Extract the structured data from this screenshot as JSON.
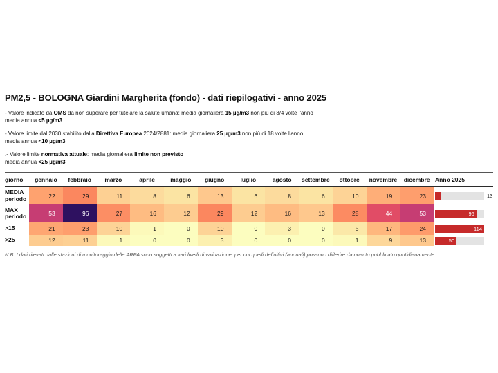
{
  "title": "PM2,5 - BOLOGNA Giardini Margherita (fondo) - dati riepilogativi - anno 2025",
  "notes": [
    {
      "lines": [
        [
          {
            "t": "- Valore indicato da "
          },
          {
            "t": "OMS",
            "b": 1
          },
          {
            "t": " da non superare per tutelare la salute umana: media giornaliera "
          },
          {
            "t": "15 µg/m3",
            "b": 1
          },
          {
            "t": " non più di 3/4 volte l'anno"
          }
        ],
        [
          {
            "t": "media annua "
          },
          {
            "t": "<5 µg/m3",
            "b": 1
          }
        ]
      ]
    },
    {
      "lines": [
        [
          {
            "t": "- Valore limite dal 2030 stabilito dalla "
          },
          {
            "t": "Direttiva Europea",
            "b": 1
          },
          {
            "t": " 2024/2881: media giornaliera "
          },
          {
            "t": "25 µg/m3",
            "b": 1
          },
          {
            "t": " non più di 18 volte l'anno"
          }
        ],
        [
          {
            "t": "media annua "
          },
          {
            "t": "<10 µg/m3",
            "b": 1
          }
        ]
      ]
    },
    {
      "lines": [
        [
          {
            "t": ".- Valore limite "
          },
          {
            "t": "normativa attuale",
            "b": 1
          },
          {
            "t": ": media giornaliera "
          },
          {
            "t": "limite non previsto",
            "b": 1
          }
        ],
        [
          {
            "t": "media annua "
          },
          {
            "t": "<25 µg/m3",
            "b": 1
          }
        ]
      ]
    }
  ],
  "table": {
    "corner_header": "giorno",
    "month_headers": [
      "gennaio",
      "febbraio",
      "marzo",
      "aprile",
      "maggio",
      "giugno",
      "luglio",
      "agosto",
      "settembre",
      "ottobre",
      "novembre",
      "dicembre"
    ],
    "year_header": "Anno 2025",
    "bar_max": 114,
    "bar_color": "#c62a2a",
    "bar_track_color": "#e3e3e3",
    "rows": [
      {
        "label_lines": [
          "MEDIA",
          "periodo"
        ],
        "cells": [
          {
            "v": 22,
            "bg": "#fea26f"
          },
          {
            "v": 29,
            "bg": "#fb875f"
          },
          {
            "v": 11,
            "bg": "#fdd093"
          },
          {
            "v": 8,
            "bg": "#fcdb9d"
          },
          {
            "v": 6,
            "bg": "#fbe4a3"
          },
          {
            "v": 13,
            "bg": "#fec88d"
          },
          {
            "v": 6,
            "bg": "#fbe4a3"
          },
          {
            "v": 8,
            "bg": "#fcdb9d"
          },
          {
            "v": 6,
            "bg": "#fbe4a3"
          },
          {
            "v": 10,
            "bg": "#fdd396"
          },
          {
            "v": 19,
            "bg": "#feae78"
          },
          {
            "v": 23,
            "bg": "#fe9e6d"
          }
        ],
        "year": 13
      },
      {
        "label_lines": [
          "MAX",
          "periodo"
        ],
        "cells": [
          {
            "v": 53,
            "bg": "#c63d73",
            "fg": "#ffffff"
          },
          {
            "v": 96,
            "bg": "#2e1160",
            "fg": "#ffffff"
          },
          {
            "v": 27,
            "bg": "#fc8e64"
          },
          {
            "v": 16,
            "bg": "#febc82"
          },
          {
            "v": 12,
            "bg": "#fdcc90"
          },
          {
            "v": 29,
            "bg": "#fb875f"
          },
          {
            "v": 12,
            "bg": "#fdcc90"
          },
          {
            "v": 16,
            "bg": "#febc82"
          },
          {
            "v": 13,
            "bg": "#fec88d"
          },
          {
            "v": 28,
            "bg": "#fc8b62"
          },
          {
            "v": 44,
            "bg": "#e14c66",
            "fg": "#ffffff"
          },
          {
            "v": 53,
            "bg": "#c63d73",
            "fg": "#ffffff"
          }
        ],
        "year": 96
      },
      {
        "label_lines": [
          ">15"
        ],
        "cells": [
          {
            "v": 21,
            "bg": "#fea672"
          },
          {
            "v": 23,
            "bg": "#fe9e6d"
          },
          {
            "v": 10,
            "bg": "#fdd396"
          },
          {
            "v": 1,
            "bg": "#fcf9ba"
          },
          {
            "v": 0,
            "bg": "#fcfdbf"
          },
          {
            "v": 10,
            "bg": "#fdd396"
          },
          {
            "v": 0,
            "bg": "#fcfdbf"
          },
          {
            "v": 3,
            "bg": "#fcf0b0"
          },
          {
            "v": 0,
            "bg": "#fcfdbf"
          },
          {
            "v": 5,
            "bg": "#fbe8a8"
          },
          {
            "v": 17,
            "bg": "#feb77e"
          },
          {
            "v": 24,
            "bg": "#fe9b6b"
          }
        ],
        "year": 114
      },
      {
        "label_lines": [
          ">25"
        ],
        "cells": [
          {
            "v": 12,
            "bg": "#fdcc90"
          },
          {
            "v": 11,
            "bg": "#fdd093"
          },
          {
            "v": 1,
            "bg": "#fcf9ba"
          },
          {
            "v": 0,
            "bg": "#fcfdbf"
          },
          {
            "v": 0,
            "bg": "#fcfdbf"
          },
          {
            "v": 3,
            "bg": "#fcf0b0"
          },
          {
            "v": 0,
            "bg": "#fcfdbf"
          },
          {
            "v": 0,
            "bg": "#fcfdbf"
          },
          {
            "v": 0,
            "bg": "#fcfdbf"
          },
          {
            "v": 1,
            "bg": "#fcf9ba"
          },
          {
            "v": 9,
            "bg": "#fdd79a"
          },
          {
            "v": 13,
            "bg": "#fec88d"
          }
        ],
        "year": 50
      }
    ]
  },
  "footer": "N.B. I dati rilevati dalle stazioni di monitoraggio delle ARPA sono soggetti a vari livelli di validazione, per cui quelli definitivi (annuali) possono differire da quanto pubblicato quotidianamente",
  "chart_data": {
    "type": "table",
    "title": "PM2,5 - BOLOGNA Giardini Margherita (fondo) - dati riepilogativi - anno 2025",
    "columns": [
      "giorno",
      "gennaio",
      "febbraio",
      "marzo",
      "aprile",
      "maggio",
      "giugno",
      "luglio",
      "agosto",
      "settembre",
      "ottobre",
      "novembre",
      "dicembre",
      "Anno 2025"
    ],
    "rows": [
      {
        "label": "MEDIA periodo",
        "monthly": [
          22,
          29,
          11,
          8,
          6,
          13,
          6,
          8,
          6,
          10,
          19,
          23
        ],
        "anno": 13
      },
      {
        "label": "MAX periodo",
        "monthly": [
          53,
          96,
          27,
          16,
          12,
          29,
          12,
          16,
          13,
          28,
          44,
          53
        ],
        "anno": 96
      },
      {
        "label": ">15",
        "monthly": [
          21,
          23,
          10,
          1,
          0,
          10,
          0,
          3,
          0,
          5,
          17,
          24
        ],
        "anno": 114
      },
      {
        "label": ">25",
        "monthly": [
          12,
          11,
          1,
          0,
          0,
          3,
          0,
          0,
          0,
          1,
          9,
          13
        ],
        "anno": 50
      }
    ],
    "heatmap_colormap": "magma reversed, domain 0-114 (pale yellow = low, orange = mid, crimson = high, dark purple = highest)",
    "anno_column_style": "red horizontal bar on gray track, scaled to max 114",
    "units": "µg/m3 (MEDIA/MAX) and number of days (>15, >25)"
  }
}
